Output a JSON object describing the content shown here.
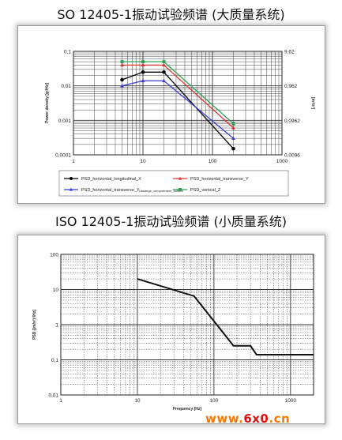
{
  "titles": {
    "top": "SO 12405-1振动试验频谱 (大质量系统)",
    "bottom": "ISO 12405-1振动试验频谱 (小质量系统)"
  },
  "watermark": {
    "pre": "www.",
    "mid": "6x0",
    "post": ".cn"
  },
  "chart_data": [
    {
      "type": "line",
      "xscale": "log",
      "yscale": "log",
      "xlim": [
        1,
        1000
      ],
      "ylim": [
        0.0001,
        0.1
      ],
      "x_tick_labels": [
        "1",
        "10",
        "100",
        "1000"
      ],
      "y_tick_labels": [
        "0,0001",
        "0,001",
        "0,01",
        "0,1"
      ],
      "y2_tick_labels": [
        "0,0096",
        "0,0962",
        "0,962",
        "9,62"
      ],
      "ylabel": "Power density [g²/Hz]",
      "y2label": "[m²/s³]",
      "legend": {
        "position": "bottom",
        "entries": [
          "PSD_horizontal_longitudinal_X",
          "PSD_horizontal_transverse_Y",
          "PSD_horizontal_transverse_Y",
          "PSD_vertical_Z"
        ],
        "sub": "Ussange_comportment_bottom"
      },
      "series": [
        {
          "color": "#000000",
          "marker": "circle",
          "x": [
            5,
            10,
            20,
            200
          ],
          "y": [
            0.015,
            0.025,
            0.025,
            0.00015
          ]
        },
        {
          "color": "#3a3ad8",
          "marker": "triangle",
          "x": [
            5,
            10,
            20,
            200
          ],
          "y": [
            0.01,
            0.014,
            0.014,
            0.0003
          ]
        },
        {
          "color": "#e03030",
          "marker": "triangle",
          "x": [
            5,
            10,
            20,
            200
          ],
          "y": [
            0.04,
            0.04,
            0.04,
            0.0006
          ]
        },
        {
          "color": "#2aa050",
          "marker": "square",
          "x": [
            5,
            10,
            20,
            200
          ],
          "y": [
            0.05,
            0.05,
            0.05,
            0.0008
          ]
        }
      ]
    },
    {
      "type": "line",
      "xscale": "log",
      "yscale": "log",
      "xlim": [
        1,
        2000
      ],
      "ylim": [
        0.01,
        100
      ],
      "x_tick_labels": [
        "1",
        "10",
        "100",
        "1000"
      ],
      "y_tick_labels": [
        "0,01",
        "0,1",
        "1",
        "10",
        "100"
      ],
      "xlabel": "Frequency [Hz]",
      "ylabel": "PSD [(m/s²)²/Hz]",
      "series": [
        {
          "color": "#111111",
          "x": [
            10,
            55,
            180,
            300,
            360,
            2000
          ],
          "y": [
            20,
            6.5,
            0.25,
            0.25,
            0.14,
            0.14
          ]
        }
      ]
    }
  ]
}
